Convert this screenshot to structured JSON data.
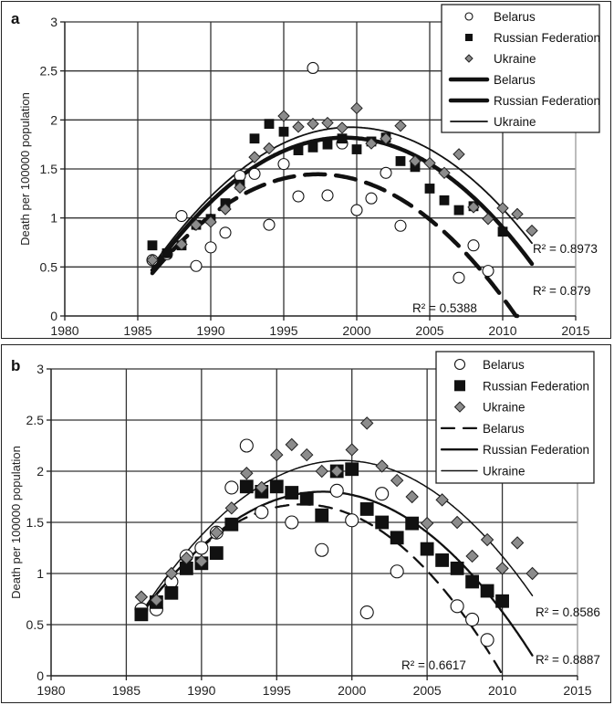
{
  "chart_data": [
    {
      "type": "scatter",
      "panel_label": "a",
      "ylabel": "Death per 100000 population",
      "xlabel": "",
      "xlim": [
        1980,
        2015
      ],
      "ylim": [
        0,
        3
      ],
      "xticks": [
        "1980",
        "1985",
        "1990",
        "1995",
        "2000",
        "2005",
        "2010",
        "2015"
      ],
      "yticks": [
        "0",
        "0.5",
        "1",
        "1.5",
        "2",
        "2.5",
        "3"
      ],
      "grid": true,
      "legend_position": "top-right",
      "legend": [
        "Belarus",
        "Russian Federation",
        "Ukraine",
        "Belarus",
        "Russian Federation",
        "Ukraine"
      ],
      "series": [
        {
          "name": "Belarus",
          "marker": "circle",
          "x": [
            1986,
            1987,
            1988,
            1989,
            1990,
            1991,
            1992,
            1993,
            1994,
            1995,
            1996,
            1997,
            1998,
            1999,
            2000,
            2001,
            2002,
            2003,
            2007,
            2008,
            2009
          ],
          "values": [
            0.57,
            0.63,
            1.02,
            0.51,
            0.7,
            0.85,
            1.43,
            1.45,
            0.93,
            1.55,
            1.22,
            2.53,
            1.23,
            1.76,
            1.08,
            1.2,
            1.46,
            0.92,
            0.39,
            0.72,
            0.46
          ]
        },
        {
          "name": "Russian Federation",
          "marker": "square",
          "x": [
            1986,
            1987,
            1988,
            1989,
            1990,
            1991,
            1992,
            1993,
            1994,
            1995,
            1996,
            1997,
            1998,
            1999,
            2000,
            2001,
            2002,
            2003,
            2004,
            2005,
            2006,
            2007,
            2008,
            2010
          ],
          "values": [
            0.72,
            0.64,
            0.72,
            0.93,
            0.99,
            1.15,
            1.34,
            1.81,
            1.96,
            1.88,
            1.69,
            1.72,
            1.75,
            1.81,
            1.7,
            1.78,
            1.82,
            1.58,
            1.52,
            1.3,
            1.18,
            1.08,
            1.12,
            0.86
          ]
        },
        {
          "name": "Ukraine",
          "marker": "diamond",
          "x": [
            1986,
            1988,
            1989,
            1990,
            1991,
            1992,
            1993,
            1994,
            1995,
            1996,
            1997,
            1998,
            1999,
            2000,
            2001,
            2002,
            2003,
            2004,
            2005,
            2006,
            2007,
            2008,
            2009,
            2010,
            2011,
            2012
          ],
          "values": [
            0.57,
            0.73,
            0.93,
            0.96,
            1.09,
            1.31,
            1.62,
            1.71,
            2.04,
            1.93,
            1.96,
            1.97,
            1.92,
            2.12,
            1.76,
            1.81,
            1.94,
            1.58,
            1.56,
            1.46,
            1.65,
            1.11,
            0.99,
            1.1,
            1.04,
            0.87
          ]
        }
      ],
      "trendlines": [
        {
          "name": "Belarus",
          "style": "dashed-thick",
          "type": "polynomial-2",
          "x": [
            1986,
            1992,
            1998,
            2004,
            2011
          ],
          "values": [
            0.42,
            1.25,
            1.46,
            1.05,
            0.0
          ],
          "r2_label": "R² = 0.5388"
        },
        {
          "name": "Russian Federation",
          "style": "solid-thick",
          "type": "polynomial-2",
          "x": [
            1986,
            1992,
            1999.5,
            2006,
            2012
          ],
          "values": [
            0.45,
            1.45,
            1.82,
            1.42,
            0.55
          ],
          "r2_label": "R² = 0.879"
        },
        {
          "name": "Ukraine",
          "style": "solid-thin",
          "type": "polynomial-2",
          "x": [
            1986,
            1992,
            2000,
            2006,
            2012
          ],
          "values": [
            0.5,
            1.5,
            1.92,
            1.6,
            0.75
          ],
          "r2_label": "R² = 0.8973"
        }
      ]
    },
    {
      "type": "scatter",
      "panel_label": "b",
      "ylabel": "Death per 100000 population",
      "xlabel": "",
      "xlim": [
        1980,
        2015
      ],
      "ylim": [
        0,
        3
      ],
      "xticks": [
        "1980",
        "1985",
        "1990",
        "1995",
        "2000",
        "2005",
        "2010",
        "2015"
      ],
      "yticks": [
        "0",
        "0.5",
        "1",
        "1.5",
        "2",
        "2.5",
        "3"
      ],
      "grid": true,
      "legend_position": "top-right",
      "legend": [
        "Belarus",
        "Russian Federation",
        "Ukraine",
        "Belarus",
        "Russian Federation",
        "Ukraine"
      ],
      "series": [
        {
          "name": "Belarus",
          "marker": "circle",
          "x": [
            1986,
            1987,
            1988,
            1989,
            1990,
            1991,
            1992,
            1993,
            1994,
            1996,
            1998,
            1999,
            2000,
            2001,
            2002,
            2003,
            2007,
            2008,
            2009
          ],
          "values": [
            0.65,
            0.65,
            0.92,
            1.17,
            1.25,
            1.4,
            1.84,
            2.25,
            1.6,
            1.5,
            1.23,
            1.81,
            1.52,
            0.62,
            1.78,
            1.02,
            0.68,
            0.55,
            0.35
          ]
        },
        {
          "name": "Russian Federation",
          "marker": "square",
          "x": [
            1986,
            1987,
            1988,
            1989,
            1990,
            1991,
            1992,
            1993,
            1994,
            1995,
            1996,
            1997,
            1998,
            1999,
            2000,
            2001,
            2002,
            2003,
            2004,
            2005,
            2006,
            2007,
            2008,
            2009,
            2010
          ],
          "values": [
            0.6,
            0.72,
            0.81,
            1.05,
            1.1,
            1.2,
            1.48,
            1.85,
            1.8,
            1.85,
            1.79,
            1.73,
            1.57,
            2.0,
            2.02,
            1.63,
            1.5,
            1.35,
            1.49,
            1.24,
            1.13,
            1.05,
            0.92,
            0.83,
            0.73
          ]
        },
        {
          "name": "Ukraine",
          "marker": "diamond",
          "x": [
            1986,
            1987,
            1988,
            1989,
            1990,
            1991,
            1992,
            1993,
            1994,
            1995,
            1996,
            1997,
            1998,
            1999,
            2000,
            2001,
            2002,
            2003,
            2004,
            2005,
            2006,
            2007,
            2008,
            2009,
            2010,
            2011,
            2012
          ],
          "values": [
            0.77,
            0.74,
            1.0,
            1.15,
            1.12,
            1.4,
            1.64,
            1.98,
            1.84,
            2.16,
            2.26,
            2.16,
            2.0,
            2.0,
            2.21,
            2.47,
            2.05,
            1.91,
            1.75,
            1.49,
            1.72,
            1.5,
            1.17,
            1.33,
            1.05,
            1.3,
            1.0
          ]
        }
      ],
      "trendlines": [
        {
          "name": "Belarus",
          "style": "dashed",
          "type": "polynomial-2",
          "x": [
            1986,
            1991,
            1997,
            2004,
            2010
          ],
          "values": [
            0.62,
            1.35,
            1.67,
            1.2,
            0.0
          ],
          "r2_label": "R² = 0.6617"
        },
        {
          "name": "Russian Federation",
          "style": "solid",
          "type": "polynomial-2",
          "x": [
            1986,
            1992,
            1998,
            2005,
            2012
          ],
          "values": [
            0.6,
            1.5,
            1.8,
            1.4,
            0.2
          ],
          "r2_label": "R² = 0.8887"
        },
        {
          "name": "Ukraine",
          "style": "solid-thin",
          "type": "polynomial-2",
          "x": [
            1986,
            1992,
            1999.5,
            2006,
            2012
          ],
          "values": [
            0.62,
            1.65,
            2.1,
            1.75,
            0.78
          ],
          "r2_label": "R² = 0.8586"
        }
      ]
    }
  ]
}
